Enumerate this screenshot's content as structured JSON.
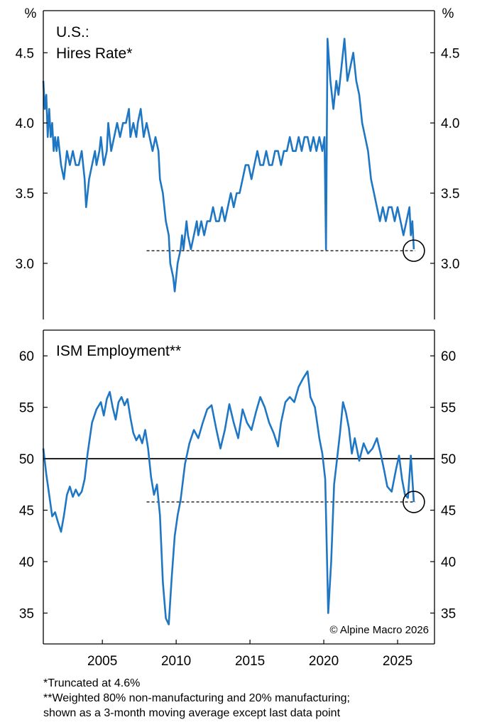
{
  "footnotes": [
    "*Truncated at 4.6%",
    "**Weighted 80% non-manufacturing and 20% manufacturing;",
    "shown as a 3-month moving average except last data point"
  ],
  "chart_data": [
    {
      "type": "line",
      "title": "U.S.:",
      "subtitle": "Hires Rate*",
      "unit_label": "%",
      "ylim": [
        2.6,
        4.8
      ],
      "yticks": [
        3.0,
        3.5,
        4.0,
        4.5
      ],
      "ytick_labels": [
        "3.0",
        "3.5",
        "4.0",
        "4.5"
      ],
      "xlim": [
        2001.0,
        2027.5
      ],
      "reference_line": {
        "value": 3.09,
        "style": "dashed",
        "from_x": 2008.0,
        "to_x": 2026.2
      },
      "highlight_circle": {
        "x": 2026.1,
        "y": 3.09
      },
      "series": [
        {
          "color": "#1f77c4",
          "points": [
            [
              2001.0,
              4.3
            ],
            [
              2001.1,
              4.1
            ],
            [
              2001.2,
              4.2
            ],
            [
              2001.3,
              3.9
            ],
            [
              2001.4,
              4.1
            ],
            [
              2001.5,
              3.9
            ],
            [
              2001.6,
              4.0
            ],
            [
              2001.7,
              3.8
            ],
            [
              2001.8,
              3.9
            ],
            [
              2001.9,
              3.8
            ],
            [
              2002.0,
              3.9
            ],
            [
              2002.2,
              3.7
            ],
            [
              2002.4,
              3.6
            ],
            [
              2002.6,
              3.8
            ],
            [
              2002.8,
              3.7
            ],
            [
              2003.0,
              3.8
            ],
            [
              2003.2,
              3.7
            ],
            [
              2003.4,
              3.7
            ],
            [
              2003.6,
              3.8
            ],
            [
              2003.8,
              3.6
            ],
            [
              2003.9,
              3.4
            ],
            [
              2004.1,
              3.6
            ],
            [
              2004.3,
              3.7
            ],
            [
              2004.5,
              3.8
            ],
            [
              2004.6,
              3.7
            ],
            [
              2004.8,
              3.8
            ],
            [
              2004.9,
              3.9
            ],
            [
              2005.1,
              3.7
            ],
            [
              2005.3,
              3.8
            ],
            [
              2005.4,
              4.0
            ],
            [
              2005.6,
              3.8
            ],
            [
              2005.8,
              3.9
            ],
            [
              2006.0,
              4.0
            ],
            [
              2006.2,
              3.9
            ],
            [
              2006.4,
              4.0
            ],
            [
              2006.6,
              4.0
            ],
            [
              2006.8,
              4.1
            ],
            [
              2006.9,
              3.9
            ],
            [
              2007.1,
              4.0
            ],
            [
              2007.3,
              3.9
            ],
            [
              2007.4,
              4.0
            ],
            [
              2007.6,
              4.1
            ],
            [
              2007.8,
              3.9
            ],
            [
              2008.0,
              4.0
            ],
            [
              2008.2,
              3.9
            ],
            [
              2008.4,
              3.8
            ],
            [
              2008.6,
              3.9
            ],
            [
              2008.8,
              3.8
            ],
            [
              2008.9,
              3.6
            ],
            [
              2009.1,
              3.5
            ],
            [
              2009.3,
              3.3
            ],
            [
              2009.5,
              3.2
            ],
            [
              2009.6,
              3.0
            ],
            [
              2009.8,
              2.9
            ],
            [
              2009.9,
              2.8
            ],
            [
              2010.1,
              3.0
            ],
            [
              2010.3,
              3.1
            ],
            [
              2010.4,
              3.2
            ],
            [
              2010.5,
              3.1
            ],
            [
              2010.7,
              3.3
            ],
            [
              2010.8,
              3.2
            ],
            [
              2011.0,
              3.1
            ],
            [
              2011.2,
              3.2
            ],
            [
              2011.4,
              3.3
            ],
            [
              2011.5,
              3.2
            ],
            [
              2011.7,
              3.3
            ],
            [
              2011.9,
              3.2
            ],
            [
              2012.1,
              3.3
            ],
            [
              2012.3,
              3.3
            ],
            [
              2012.5,
              3.4
            ],
            [
              2012.7,
              3.3
            ],
            [
              2012.9,
              3.3
            ],
            [
              2013.1,
              3.4
            ],
            [
              2013.3,
              3.3
            ],
            [
              2013.5,
              3.4
            ],
            [
              2013.7,
              3.5
            ],
            [
              2013.9,
              3.4
            ],
            [
              2014.1,
              3.5
            ],
            [
              2014.3,
              3.5
            ],
            [
              2014.5,
              3.6
            ],
            [
              2014.7,
              3.7
            ],
            [
              2014.9,
              3.7
            ],
            [
              2015.1,
              3.6
            ],
            [
              2015.3,
              3.7
            ],
            [
              2015.5,
              3.8
            ],
            [
              2015.7,
              3.7
            ],
            [
              2015.9,
              3.7
            ],
            [
              2016.1,
              3.8
            ],
            [
              2016.3,
              3.7
            ],
            [
              2016.5,
              3.7
            ],
            [
              2016.7,
              3.8
            ],
            [
              2016.9,
              3.8
            ],
            [
              2017.1,
              3.7
            ],
            [
              2017.3,
              3.8
            ],
            [
              2017.5,
              3.8
            ],
            [
              2017.7,
              3.9
            ],
            [
              2017.9,
              3.8
            ],
            [
              2018.1,
              3.8
            ],
            [
              2018.3,
              3.9
            ],
            [
              2018.5,
              3.8
            ],
            [
              2018.7,
              3.9
            ],
            [
              2018.9,
              3.9
            ],
            [
              2019.1,
              3.8
            ],
            [
              2019.3,
              3.9
            ],
            [
              2019.5,
              3.8
            ],
            [
              2019.7,
              3.9
            ],
            [
              2019.9,
              3.8
            ],
            [
              2020.05,
              3.9
            ],
            [
              2020.15,
              3.1
            ],
            [
              2020.25,
              4.6
            ],
            [
              2020.45,
              4.3
            ],
            [
              2020.65,
              4.1
            ],
            [
              2020.85,
              4.3
            ],
            [
              2021.0,
              4.2
            ],
            [
              2021.2,
              4.4
            ],
            [
              2021.4,
              4.6
            ],
            [
              2021.6,
              4.3
            ],
            [
              2021.8,
              4.4
            ],
            [
              2022.0,
              4.5
            ],
            [
              2022.2,
              4.3
            ],
            [
              2022.4,
              4.2
            ],
            [
              2022.6,
              4.0
            ],
            [
              2022.8,
              3.9
            ],
            [
              2023.0,
              3.8
            ],
            [
              2023.2,
              3.6
            ],
            [
              2023.4,
              3.5
            ],
            [
              2023.6,
              3.4
            ],
            [
              2023.8,
              3.3
            ],
            [
              2024.0,
              3.4
            ],
            [
              2024.2,
              3.3
            ],
            [
              2024.4,
              3.4
            ],
            [
              2024.6,
              3.4
            ],
            [
              2024.8,
              3.3
            ],
            [
              2025.0,
              3.4
            ],
            [
              2025.2,
              3.3
            ],
            [
              2025.4,
              3.2
            ],
            [
              2025.6,
              3.3
            ],
            [
              2025.8,
              3.4
            ],
            [
              2025.9,
              3.2
            ],
            [
              2026.0,
              3.3
            ],
            [
              2026.1,
              3.1
            ]
          ]
        }
      ]
    },
    {
      "type": "line",
      "title": "ISM Employment**",
      "ylim": [
        32,
        62.5
      ],
      "yticks": [
        35,
        40,
        45,
        50,
        55,
        60
      ],
      "ytick_labels": [
        "35",
        "40",
        "45",
        "50",
        "55",
        "60"
      ],
      "xlim": [
        2001.0,
        2027.5
      ],
      "xticks": [
        2005,
        2010,
        2015,
        2020,
        2025
      ],
      "xtick_labels": [
        "2005",
        "2010",
        "2015",
        "2020",
        "2025"
      ],
      "reference_line": {
        "value": 45.8,
        "style": "dashed",
        "from_x": 2008.0,
        "to_x": 2026.2
      },
      "baseline": {
        "value": 50,
        "style": "solid"
      },
      "highlight_circle": {
        "x": 2026.1,
        "y": 45.8
      },
      "credit": "© Alpine Macro 2026",
      "series": [
        {
          "color": "#1f77c4",
          "points": [
            [
              2001.0,
              51.0
            ],
            [
              2001.2,
              48.5
            ],
            [
              2001.4,
              46.5
            ],
            [
              2001.6,
              44.4
            ],
            [
              2001.8,
              44.8
            ],
            [
              2002.0,
              43.8
            ],
            [
              2002.2,
              42.9
            ],
            [
              2002.4,
              44.5
            ],
            [
              2002.6,
              46.5
            ],
            [
              2002.8,
              47.3
            ],
            [
              2003.0,
              46.3
            ],
            [
              2003.2,
              47.0
            ],
            [
              2003.4,
              46.4
            ],
            [
              2003.6,
              46.8
            ],
            [
              2003.8,
              48.0
            ],
            [
              2004.0,
              50.5
            ],
            [
              2004.3,
              53.5
            ],
            [
              2004.6,
              54.8
            ],
            [
              2004.9,
              55.5
            ],
            [
              2005.1,
              54.2
            ],
            [
              2005.3,
              55.8
            ],
            [
              2005.5,
              56.5
            ],
            [
              2005.7,
              55.0
            ],
            [
              2005.9,
              53.8
            ],
            [
              2006.1,
              55.5
            ],
            [
              2006.3,
              56.0
            ],
            [
              2006.5,
              55.2
            ],
            [
              2006.7,
              55.8
            ],
            [
              2006.9,
              54.0
            ],
            [
              2007.1,
              52.5
            ],
            [
              2007.3,
              51.8
            ],
            [
              2007.5,
              52.3
            ],
            [
              2007.7,
              51.5
            ],
            [
              2007.9,
              52.8
            ],
            [
              2008.1,
              51.0
            ],
            [
              2008.3,
              48.2
            ],
            [
              2008.5,
              46.5
            ],
            [
              2008.7,
              47.5
            ],
            [
              2008.9,
              44.5
            ],
            [
              2009.1,
              38.0
            ],
            [
              2009.3,
              34.5
            ],
            [
              2009.5,
              33.9
            ],
            [
              2009.7,
              38.5
            ],
            [
              2009.9,
              42.5
            ],
            [
              2010.1,
              44.5
            ],
            [
              2010.3,
              46.0
            ],
            [
              2010.6,
              49.5
            ],
            [
              2010.9,
              51.5
            ],
            [
              2011.2,
              52.8
            ],
            [
              2011.5,
              52.0
            ],
            [
              2011.8,
              53.5
            ],
            [
              2012.1,
              54.8
            ],
            [
              2012.4,
              55.2
            ],
            [
              2012.7,
              53.0
            ],
            [
              2013.0,
              51.0
            ],
            [
              2013.3,
              52.8
            ],
            [
              2013.6,
              55.3
            ],
            [
              2013.9,
              53.5
            ],
            [
              2014.2,
              52.0
            ],
            [
              2014.5,
              54.8
            ],
            [
              2014.8,
              53.5
            ],
            [
              2015.1,
              52.8
            ],
            [
              2015.4,
              54.5
            ],
            [
              2015.7,
              56.0
            ],
            [
              2016.0,
              55.0
            ],
            [
              2016.3,
              53.5
            ],
            [
              2016.6,
              52.5
            ],
            [
              2016.9,
              51.2
            ],
            [
              2017.1,
              53.5
            ],
            [
              2017.4,
              55.5
            ],
            [
              2017.7,
              56.0
            ],
            [
              2018.0,
              55.5
            ],
            [
              2018.3,
              57.0
            ],
            [
              2018.6,
              57.8
            ],
            [
              2018.9,
              58.5
            ],
            [
              2019.1,
              56.0
            ],
            [
              2019.4,
              55.0
            ],
            [
              2019.7,
              52.0
            ],
            [
              2019.9,
              50.5
            ],
            [
              2020.1,
              48.0
            ],
            [
              2020.3,
              35.0
            ],
            [
              2020.5,
              40.0
            ],
            [
              2020.7,
              47.5
            ],
            [
              2020.9,
              50.0
            ],
            [
              2021.1,
              52.5
            ],
            [
              2021.3,
              55.5
            ],
            [
              2021.5,
              54.5
            ],
            [
              2021.7,
              53.0
            ],
            [
              2021.9,
              50.5
            ],
            [
              2022.1,
              52.0
            ],
            [
              2022.4,
              49.8
            ],
            [
              2022.7,
              51.5
            ],
            [
              2023.0,
              50.5
            ],
            [
              2023.3,
              51.0
            ],
            [
              2023.6,
              52.0
            ],
            [
              2023.9,
              50.2
            ],
            [
              2024.1,
              48.8
            ],
            [
              2024.3,
              47.3
            ],
            [
              2024.6,
              46.8
            ],
            [
              2024.9,
              49.0
            ],
            [
              2025.1,
              50.3
            ],
            [
              2025.3,
              48.0
            ],
            [
              2025.5,
              46.5
            ],
            [
              2025.7,
              46.2
            ],
            [
              2025.9,
              50.3
            ],
            [
              2026.1,
              45.8
            ]
          ]
        }
      ]
    }
  ]
}
